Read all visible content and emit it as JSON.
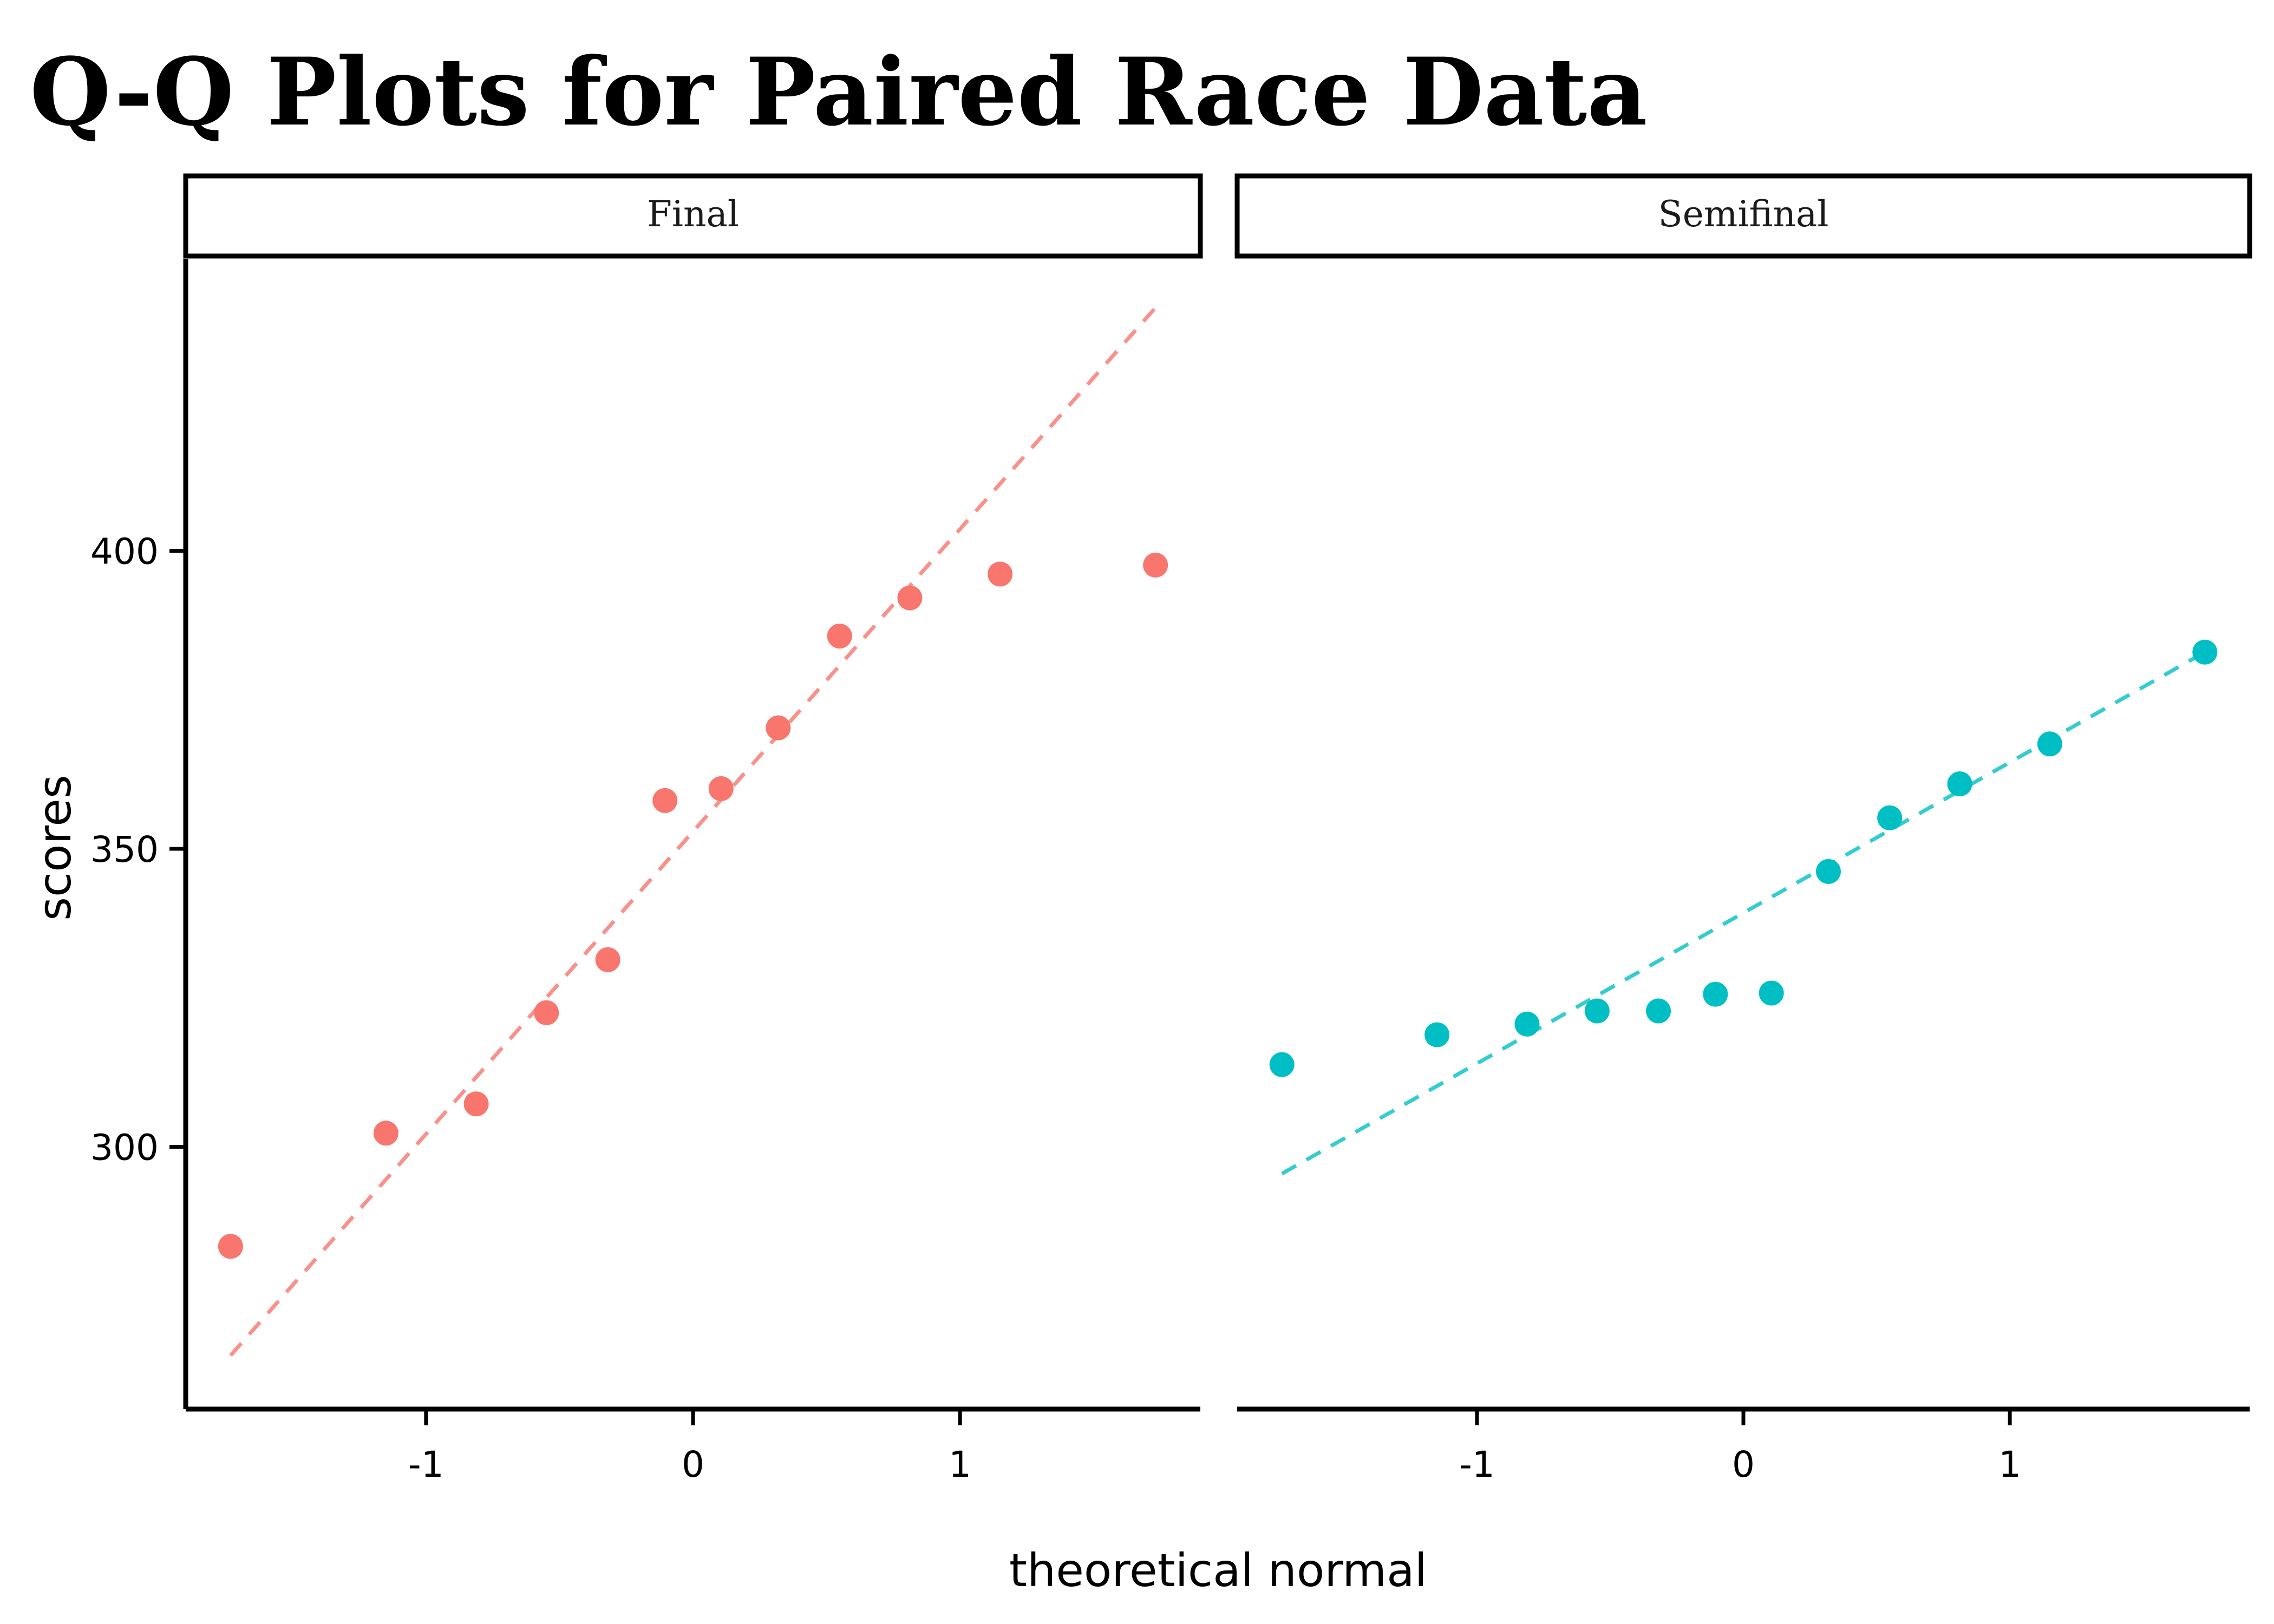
{
  "chart_data": {
    "type": "scatter",
    "title": "Q-Q Plots for Paired Race Data",
    "xlabel": "theoretical normal",
    "ylabel": "scores",
    "xlim": [
      -1.9,
      1.9
    ],
    "ylim": [
      256,
      449
    ],
    "x_ticks": [
      "-1",
      "0",
      "1"
    ],
    "x_tick_values": [
      -1,
      0,
      1
    ],
    "y_ticks": [
      "300",
      "350",
      "400"
    ],
    "y_tick_values": [
      300,
      350,
      400
    ],
    "grid": false,
    "legend": "none",
    "panels": [
      {
        "name": "Final",
        "color": "#F8766D",
        "line_color": "#F8766D",
        "points": [
          {
            "x": -1.732,
            "y": 283.3
          },
          {
            "x": -1.15,
            "y": 302.3
          },
          {
            "x": -0.812,
            "y": 307.2
          },
          {
            "x": -0.549,
            "y": 322.5
          },
          {
            "x": -0.319,
            "y": 331.4
          },
          {
            "x": -0.105,
            "y": 358.1
          },
          {
            "x": 0.105,
            "y": 360.1
          },
          {
            "x": 0.319,
            "y": 370.3
          },
          {
            "x": 0.549,
            "y": 385.7
          },
          {
            "x": 0.812,
            "y": 392.1
          },
          {
            "x": 1.15,
            "y": 396.1
          },
          {
            "x": 1.732,
            "y": 397.6
          }
        ],
        "qq_line": {
          "x": [
            -1.732,
            1.732
          ],
          "y": [
            265.0,
            440.8
          ]
        }
      },
      {
        "name": "Semifinal",
        "color": "#00BFC4",
        "line_color": "#00BFC4",
        "points": [
          {
            "x": -1.732,
            "y": 313.8
          },
          {
            "x": -1.15,
            "y": 318.8
          },
          {
            "x": -0.812,
            "y": 320.6
          },
          {
            "x": -0.549,
            "y": 322.8
          },
          {
            "x": -0.319,
            "y": 322.8
          },
          {
            "x": -0.105,
            "y": 325.6
          },
          {
            "x": 0.105,
            "y": 325.8
          },
          {
            "x": 0.319,
            "y": 346.2
          },
          {
            "x": 0.549,
            "y": 355.2
          },
          {
            "x": 0.812,
            "y": 360.9
          },
          {
            "x": 1.15,
            "y": 367.6
          },
          {
            "x": 1.732,
            "y": 383.0
          }
        ],
        "qq_line": {
          "x": [
            -1.732,
            1.732
          ],
          "y": [
            295.5,
            383.0
          ]
        }
      }
    ]
  }
}
